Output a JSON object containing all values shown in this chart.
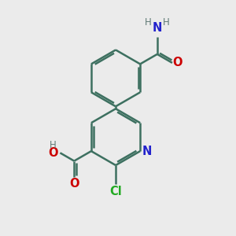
{
  "background_color": "#ebebeb",
  "bond_color": "#3d7060",
  "bond_width": 1.8,
  "atom_colors": {
    "N": "#2222cc",
    "O": "#cc0000",
    "Cl": "#22aa22",
    "H": "#607a76",
    "C": "#3d7060"
  },
  "font_size_main": 10.5,
  "font_size_small": 8.5,
  "font_size_cl": 10.5
}
